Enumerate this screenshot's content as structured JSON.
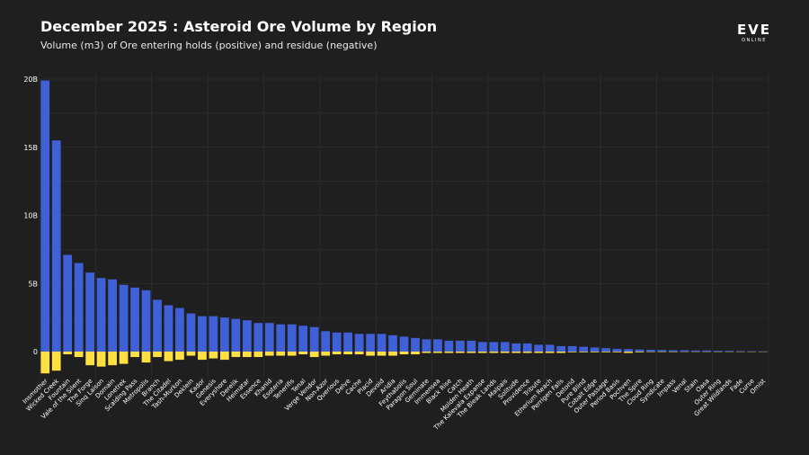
{
  "header": {
    "title": "December 2025 : Asteroid Ore Volume by Region",
    "subtitle": "Volume (m3) of Ore entering holds (positive) and residue (negative)"
  },
  "logo": {
    "name": "EVE",
    "tagline": "ONLINE"
  },
  "colors": {
    "positive": "#4060d8",
    "negative": "#ffe040",
    "grid": "#333333",
    "background": "#1f1f1f"
  },
  "chart_data": {
    "type": "bar",
    "title": "December 2025 : Asteroid Ore Volume by Region",
    "subtitle": "Volume (m3) of Ore entering holds (positive) and residue (negative)",
    "xlabel": "",
    "ylabel": "",
    "ylim": [
      -2.5,
      20.5
    ],
    "yticks": [
      0,
      5,
      10,
      15,
      20
    ],
    "ytick_labels": [
      "0",
      "5B",
      "10B",
      "15B",
      "20B"
    ],
    "grid": true,
    "categories": [
      "Insmother",
      "Wicked Creek",
      "Fountain",
      "Vale of the Silent",
      "The Forge",
      "Sinq Laison",
      "Domain",
      "Lonetrek",
      "Scalding Pass",
      "Metropolis",
      "Branch",
      "The Citadel",
      "Tash-Murkon",
      "Deklein",
      "Kador",
      "Genesis",
      "Everyshore",
      "Derelik",
      "Heimatar",
      "Essence",
      "Khanid",
      "Esoteria",
      "Tenerifis",
      "Tenal",
      "Verge Vendor",
      "Non-Azor",
      "Querious",
      "Delve",
      "Cache",
      "Placid",
      "Devoid",
      "Aridia",
      "Feythabolis",
      "Paragon Soul",
      "Geminate",
      "Immensea",
      "Black Rise",
      "Catch",
      "Molden Heath",
      "The Kalevala Expanse",
      "The Bleak Lands",
      "Malpais",
      "Solitude",
      "Providence",
      "Tribute",
      "Etherium Reach",
      "Perrigen Falls",
      "Detorid",
      "Pure Blind",
      "Cobalt Edge",
      "Outer Passage",
      "Period Basis",
      "Pochven",
      "The Spire",
      "Cloud Ring",
      "Syndicate",
      "Impass",
      "Venal",
      "Stain",
      "Oasa",
      "Outer Ring",
      "Great Wildlands",
      "Fade",
      "Curse",
      "Omist"
    ],
    "series": [
      {
        "values": [
          19.9,
          15.5,
          7.1,
          6.5,
          5.8,
          5.4,
          5.3,
          4.9,
          4.7,
          4.5,
          3.8,
          3.4,
          3.2,
          2.8,
          2.6,
          2.6,
          2.5,
          2.4,
          2.3,
          2.1,
          2.1,
          2.0,
          2.0,
          1.9,
          1.8,
          1.5,
          1.4,
          1.4,
          1.3,
          1.3,
          1.3,
          1.2,
          1.1,
          1.0,
          0.9,
          0.9,
          0.8,
          0.8,
          0.8,
          0.7,
          0.7,
          0.7,
          0.6,
          0.6,
          0.5,
          0.5,
          0.4,
          0.4,
          0.35,
          0.3,
          0.25,
          0.2,
          0.18,
          0.15,
          0.13,
          0.12,
          0.1,
          0.1,
          0.08,
          0.08,
          0.06,
          0.05,
          0.04,
          0.03,
          0.02
        ]
      },
      {
        "values": [
          -1.6,
          -1.4,
          -0.2,
          -0.4,
          -1.0,
          -1.1,
          -1.0,
          -0.9,
          -0.4,
          -0.8,
          -0.4,
          -0.7,
          -0.6,
          -0.3,
          -0.6,
          -0.5,
          -0.6,
          -0.4,
          -0.4,
          -0.4,
          -0.3,
          -0.3,
          -0.3,
          -0.2,
          -0.4,
          -0.3,
          -0.2,
          -0.2,
          -0.2,
          -0.3,
          -0.3,
          -0.3,
          -0.2,
          -0.2,
          -0.1,
          -0.1,
          -0.1,
          -0.1,
          -0.1,
          -0.1,
          -0.1,
          -0.1,
          -0.1,
          -0.1,
          -0.1,
          -0.1,
          -0.1,
          -0.05,
          -0.05,
          -0.05,
          -0.05,
          -0.05,
          -0.1,
          -0.05,
          -0.03,
          -0.03,
          -0.03,
          -0.02,
          -0.02,
          -0.02,
          -0.02,
          -0.01,
          -0.01,
          -0.01,
          -0.01
        ]
      }
    ]
  }
}
